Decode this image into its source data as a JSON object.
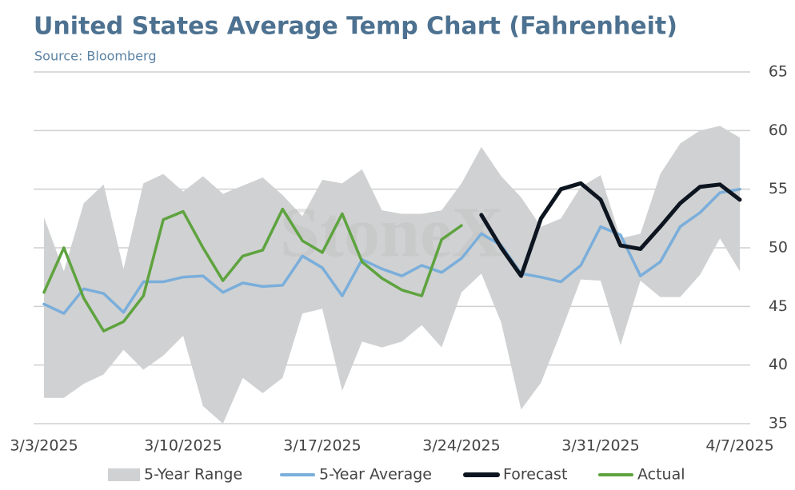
{
  "chart_data": {
    "type": "line",
    "title": "United States Average Temp Chart (Fahrenheit)",
    "subtitle": "Source: Bloomberg",
    "watermark": "StoneX",
    "categories": [
      "3/3/2025",
      null,
      null,
      null,
      null,
      null,
      null,
      "3/10/2025",
      null,
      null,
      null,
      null,
      null,
      null,
      "3/17/2025",
      null,
      null,
      null,
      null,
      null,
      null,
      "3/24/2025",
      null,
      null,
      null,
      null,
      null,
      null,
      "3/31/2025",
      null,
      null,
      null,
      null,
      null,
      null,
      "4/7/2025"
    ],
    "ylim": [
      35,
      65
    ],
    "yticks": [
      35,
      40,
      45,
      50,
      55,
      60,
      65
    ],
    "grid": true,
    "y_axis_side": "right",
    "legend": "bottom",
    "series": [
      {
        "name": "5-Year Range",
        "color": "#d0d1d2",
        "high": [
          52.6,
          48.0,
          53.8,
          55.4,
          48.2,
          55.5,
          56.3,
          54.8,
          56.1,
          54.6,
          55.3,
          56.0,
          54.5,
          52.7,
          55.8,
          55.5,
          56.7,
          53.2,
          52.9,
          52.9,
          53.2,
          55.5,
          58.6,
          56.1,
          54.3,
          51.8,
          52.5,
          55.2,
          56.2,
          50.8,
          51.2,
          56.3,
          58.9,
          60.0,
          60.4,
          59.4
        ],
        "low": [
          37.2,
          37.2,
          38.4,
          39.2,
          41.3,
          39.6,
          40.8,
          42.5,
          36.5,
          35.0,
          38.9,
          37.6,
          38.9,
          44.4,
          44.8,
          37.8,
          42.0,
          41.5,
          42.0,
          43.4,
          41.5,
          46.2,
          47.8,
          43.6,
          36.2,
          38.5,
          42.8,
          47.3,
          47.2,
          41.7,
          47.2,
          45.8,
          45.8,
          47.7,
          50.8,
          48.0
        ]
      },
      {
        "name": "5-Year Average",
        "color": "#7aaedb",
        "values": [
          45.2,
          44.4,
          46.5,
          46.1,
          44.5,
          47.1,
          47.1,
          47.5,
          47.6,
          46.2,
          47.0,
          46.7,
          46.8,
          49.3,
          48.3,
          45.9,
          49.0,
          48.2,
          47.6,
          48.5,
          47.9,
          49.1,
          51.2,
          50.2,
          47.8,
          47.5,
          47.1,
          48.5,
          51.8,
          51.1,
          47.6,
          48.8,
          51.8,
          53.0,
          54.7,
          55.0
        ]
      },
      {
        "name": "Forecast",
        "color": "#0d1520",
        "values": [
          null,
          null,
          null,
          null,
          null,
          null,
          null,
          null,
          null,
          null,
          null,
          null,
          null,
          null,
          null,
          null,
          null,
          null,
          null,
          null,
          null,
          null,
          52.8,
          50.0,
          47.6,
          52.5,
          55.0,
          55.5,
          54.1,
          50.2,
          49.9,
          51.8,
          53.8,
          55.2,
          55.4,
          54.1
        ]
      },
      {
        "name": "Actual",
        "color": "#5ea33f",
        "values": [
          46.2,
          50.0,
          45.7,
          42.9,
          43.7,
          45.9,
          52.4,
          53.1,
          50.0,
          47.2,
          49.3,
          49.8,
          53.3,
          50.6,
          49.6,
          52.9,
          48.8,
          47.4,
          46.4,
          45.9,
          50.7,
          51.9,
          null,
          null,
          null,
          null,
          null,
          null,
          null,
          null,
          null,
          null,
          null,
          null,
          null,
          null
        ]
      }
    ]
  }
}
